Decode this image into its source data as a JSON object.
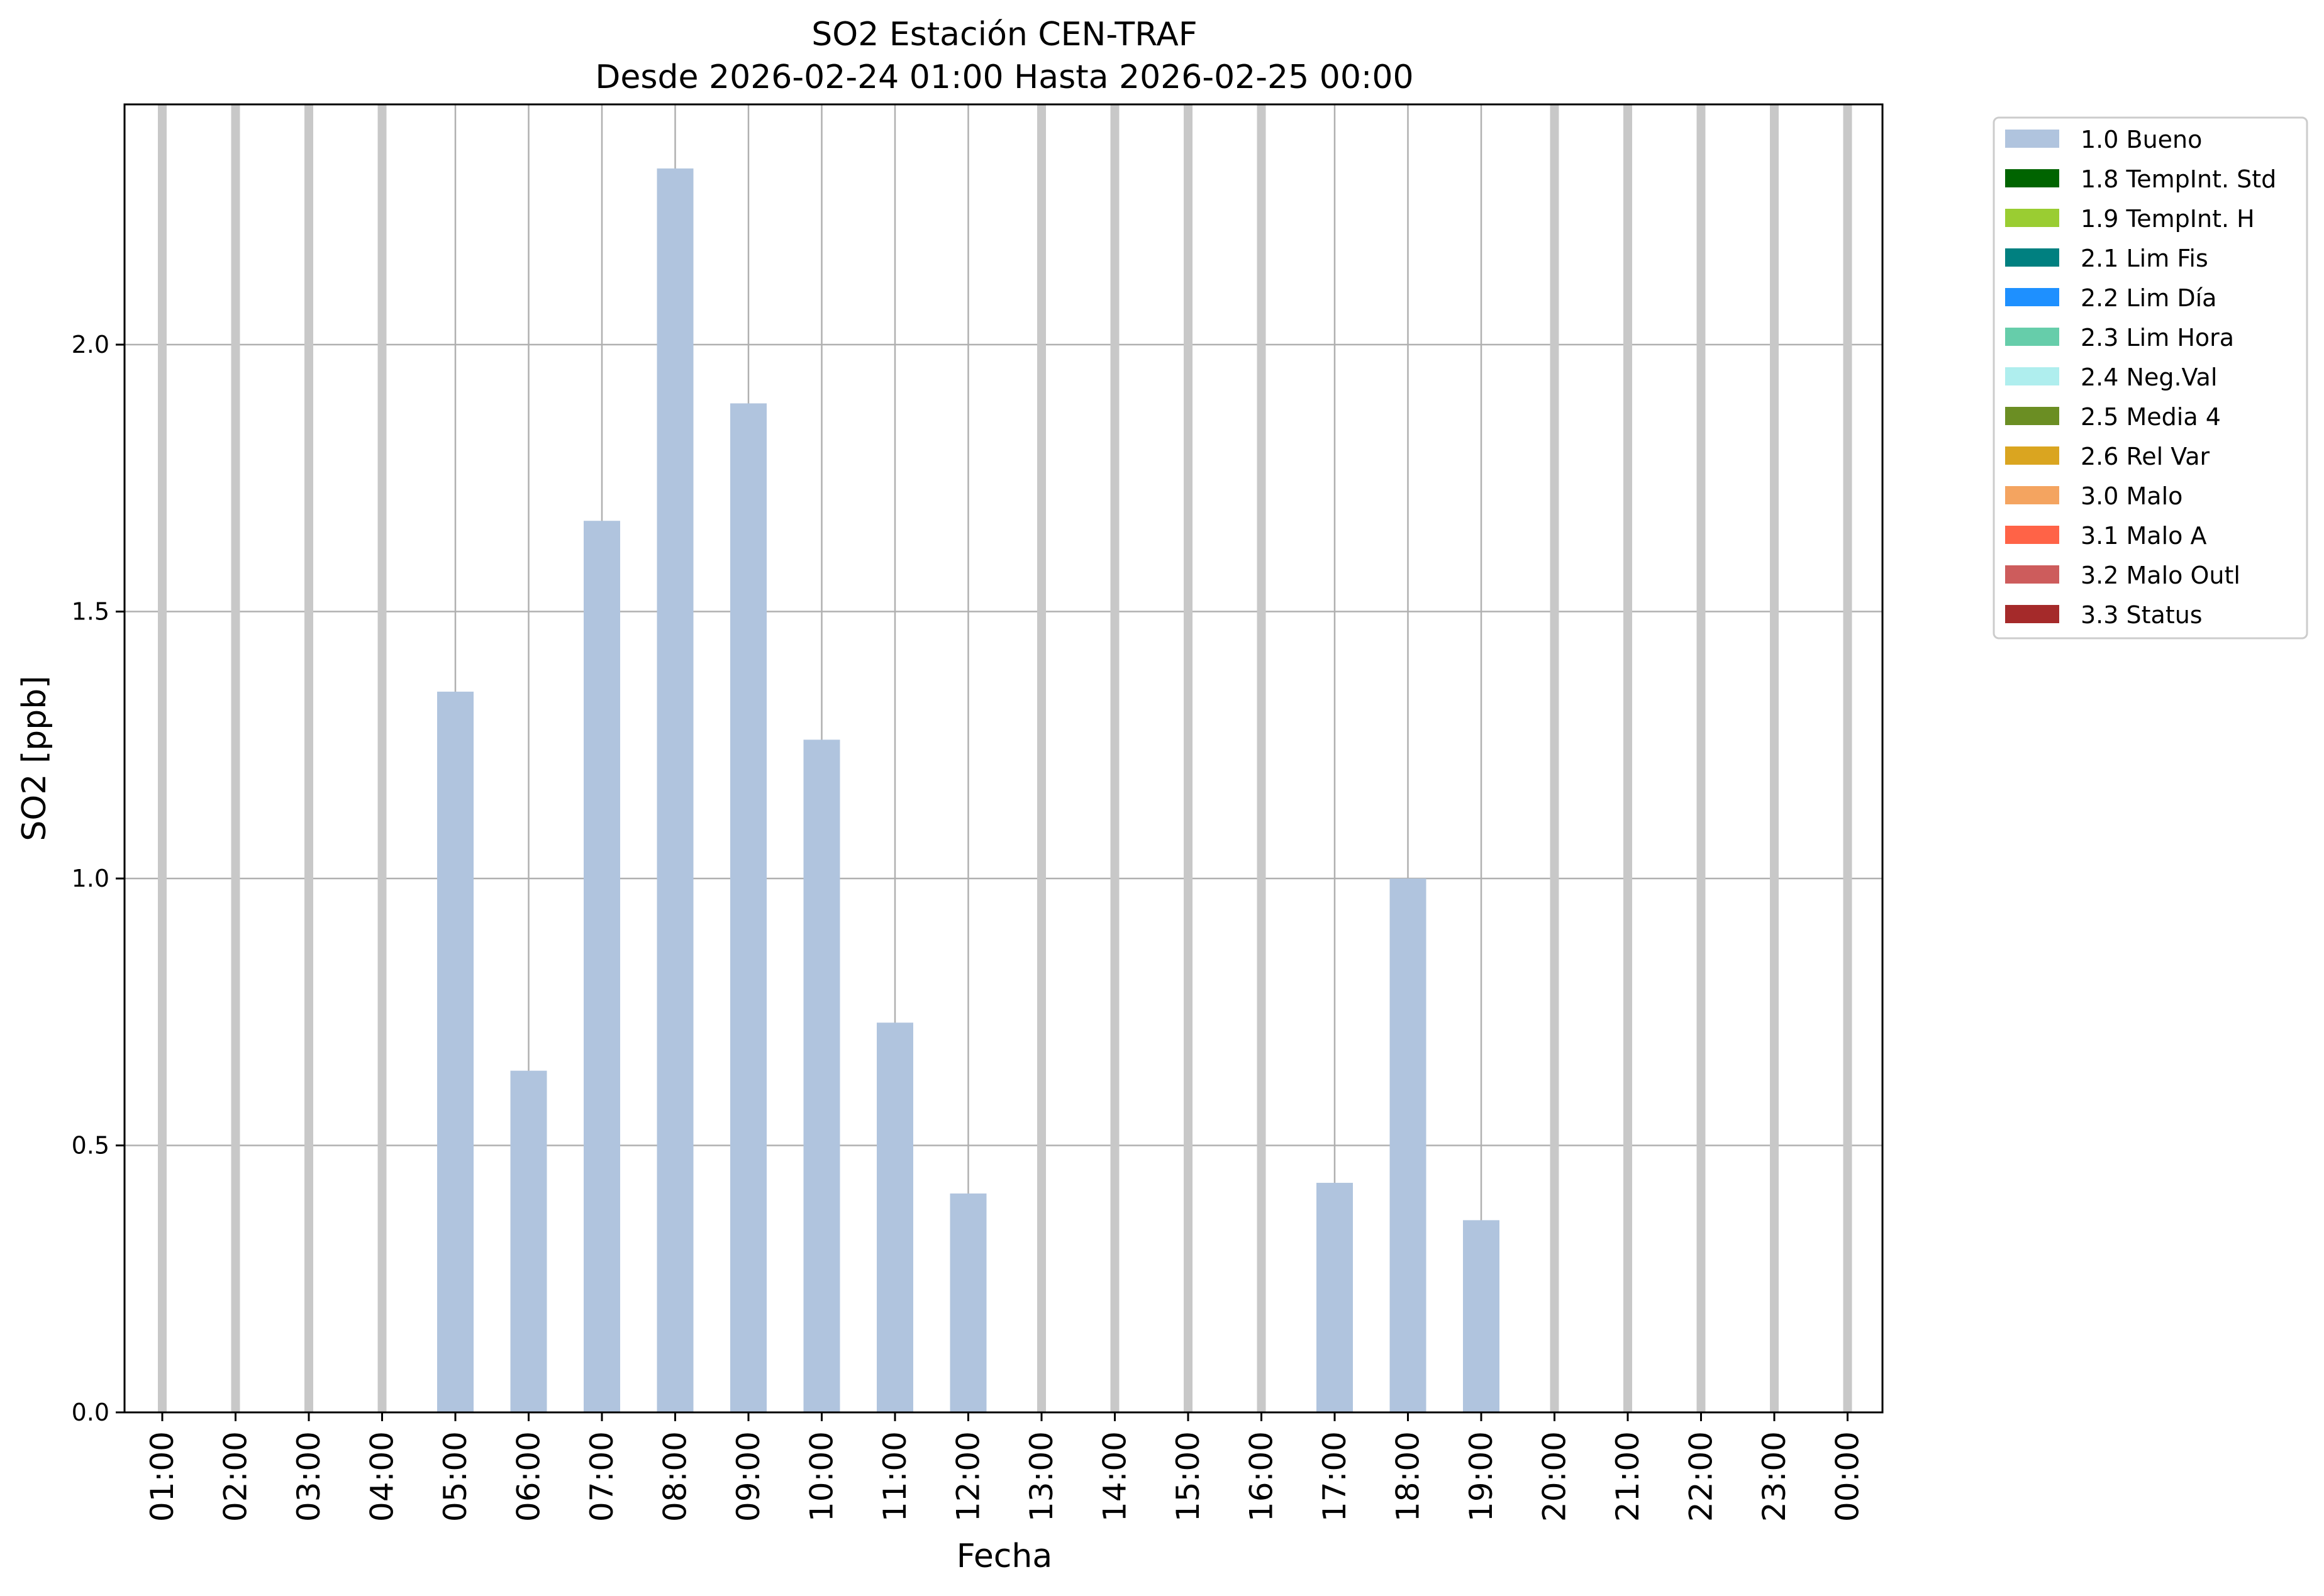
{
  "chart_data": {
    "type": "bar",
    "title_line1": "SO2 Estación CEN-TRAF",
    "title_line2": "Desde 2026-02-24 01:00 Hasta 2026-02-25 00:00",
    "xlabel": "Fecha",
    "ylabel": "SO2 [ppb]",
    "ylim": [
      0,
      2.45
    ],
    "yticks": [
      0.0,
      0.5,
      1.0,
      1.5,
      2.0
    ],
    "ytick_labels": [
      "0.0",
      "0.5",
      "1.0",
      "1.5",
      "2.0"
    ],
    "grid": true,
    "legend_position": "outside-top-right",
    "categories": [
      "01:00",
      "02:00",
      "03:00",
      "04:00",
      "05:00",
      "06:00",
      "07:00",
      "08:00",
      "09:00",
      "10:00",
      "11:00",
      "12:00",
      "13:00",
      "14:00",
      "15:00",
      "16:00",
      "17:00",
      "18:00",
      "19:00",
      "20:00",
      "21:00",
      "22:00",
      "23:00",
      "00:00"
    ],
    "series": [
      {
        "name": "1.0 Bueno",
        "color": "#b0c4de",
        "values": [
          null,
          null,
          null,
          null,
          1.35,
          0.64,
          1.67,
          2.33,
          1.89,
          1.26,
          0.73,
          0.41,
          null,
          null,
          null,
          null,
          0.43,
          1.0,
          0.36,
          null,
          null,
          null,
          null,
          null
        ]
      }
    ],
    "missing_marker_color": "#c8c8c8",
    "legend": [
      {
        "label": "1.0 Bueno",
        "color": "#b0c4de"
      },
      {
        "label": "1.8 TempInt. Std",
        "color": "#006400"
      },
      {
        "label": "1.9 TempInt. H",
        "color": "#9acd32"
      },
      {
        "label": "2.1 Lim Fis",
        "color": "#008080"
      },
      {
        "label": "2.2 Lim Día",
        "color": "#1e90ff"
      },
      {
        "label": "2.3 Lim Hora",
        "color": "#66cdaa"
      },
      {
        "label": "2.4 Neg.Val",
        "color": "#afeeee"
      },
      {
        "label": "2.5 Media 4",
        "color": "#6b8e23"
      },
      {
        "label": "2.6 Rel Var",
        "color": "#daa520"
      },
      {
        "label": "3.0 Malo",
        "color": "#f4a460"
      },
      {
        "label": "3.1 Malo A",
        "color": "#ff6347"
      },
      {
        "label": "3.2 Malo Outl",
        "color": "#cd5c5c"
      },
      {
        "label": "3.3 Status",
        "color": "#a52a2a"
      }
    ]
  }
}
